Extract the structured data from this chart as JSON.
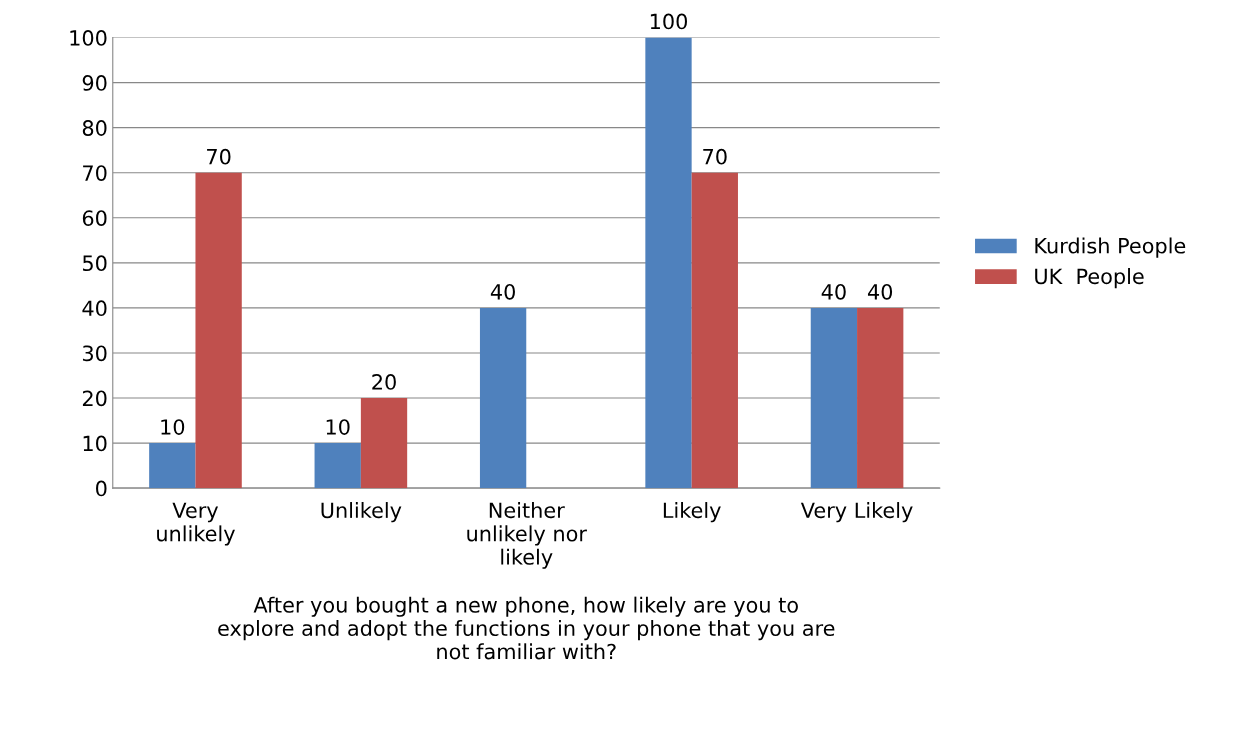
{
  "chart_data": {
    "type": "bar",
    "categories": [
      "Very\nunlikely",
      "Unlikely",
      "Neither\nunlikely nor\nlikely",
      "Likely",
      "Very Likely"
    ],
    "series": [
      {
        "name": "Kurdish People",
        "color": "#4f81bd",
        "values": [
          10,
          10,
          40,
          100,
          40
        ]
      },
      {
        "name": "UK  People",
        "color": "#c0504d",
        "values": [
          70,
          20,
          null,
          70,
          40
        ]
      }
    ],
    "xlabel": "After you bought a new phone, how likely are you to\nexplore and adopt the functions in your phone that you are\nnot familiar with?",
    "ylim": [
      0,
      100
    ],
    "yticks": [
      0,
      10,
      20,
      30,
      40,
      50,
      60,
      70,
      80,
      90,
      100
    ],
    "grid": "y",
    "legend": "right",
    "data_labels": true
  }
}
